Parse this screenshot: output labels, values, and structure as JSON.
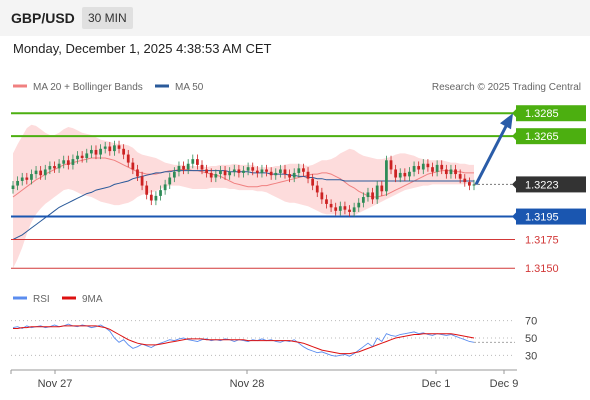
{
  "header": {
    "pair": "GBP/USD",
    "timeframe": "30 MIN",
    "datetime": "Monday, December 1, 2025 4:38:53 AM CET"
  },
  "colors": {
    "up": "#2e8b57",
    "down": "#cc2222",
    "resistance": "#4caf10",
    "support": "#1a56b0",
    "minor_support": "#d23838",
    "ma20": "#f08080",
    "ma50": "#2a5a9a",
    "bands": "#fddcdc",
    "rsi": "#5b8def",
    "rsi_ma": "#dd1111",
    "arrow": "#2a5ca8"
  },
  "chart_data": [
    {
      "type": "candlestick",
      "legend": [
        {
          "label": "MA 20 + Bollinger Bands",
          "color": "#f08080"
        },
        {
          "label": "MA 50",
          "color": "#2a5a9a"
        }
      ],
      "source": "Research © 2025 Trading Central",
      "ylim": [
        1.3138,
        1.33
      ],
      "current_price": 1.3223,
      "levels": [
        {
          "value": 1.3285,
          "label": "1.3285",
          "kind": "resistance"
        },
        {
          "value": 1.3265,
          "label": "1.3265",
          "kind": "resistance"
        },
        {
          "value": 1.3195,
          "label": "1.3195",
          "kind": "support"
        },
        {
          "value": 1.3175,
          "label": "1.3175",
          "kind": "minor_support"
        },
        {
          "value": 1.315,
          "label": "1.3150",
          "kind": "minor_support"
        }
      ],
      "forecast": {
        "from": 1.3223,
        "to": 1.3285
      },
      "x_ticks": [
        "Nov 27",
        "Nov 28",
        "Dec 1",
        "Dec 9"
      ],
      "close": [
        1.3222,
        1.3226,
        1.3229,
        1.3227,
        1.3232,
        1.3235,
        1.3231,
        1.3236,
        1.3239,
        1.3237,
        1.3241,
        1.3244,
        1.324,
        1.3245,
        1.3248,
        1.3246,
        1.325,
        1.3253,
        1.3249,
        1.3254,
        1.3256,
        1.3252,
        1.3257,
        1.3254,
        1.3249,
        1.3242,
        1.3236,
        1.323,
        1.3222,
        1.3214,
        1.3209,
        1.3213,
        1.3218,
        1.3223,
        1.3229,
        1.3234,
        1.3239,
        1.3236,
        1.3241,
        1.3245,
        1.324,
        1.3236,
        1.3233,
        1.3229,
        1.3232,
        1.3235,
        1.3231,
        1.3234,
        1.3236,
        1.3233,
        1.3235,
        1.3238,
        1.3235,
        1.3233,
        1.3236,
        1.3234,
        1.3231,
        1.3233,
        1.3236,
        1.3232,
        1.3229,
        1.3233,
        1.3237,
        1.3234,
        1.3228,
        1.3222,
        1.3216,
        1.321,
        1.3206,
        1.3203,
        1.32,
        1.3204,
        1.3201,
        1.3199,
        1.3203,
        1.3207,
        1.3212,
        1.3216,
        1.321,
        1.3222,
        1.3217,
        1.3244,
        1.3236,
        1.3229,
        1.3233,
        1.323,
        1.3234,
        1.3239,
        1.3236,
        1.3241,
        1.3238,
        1.3234,
        1.324,
        1.3236,
        1.3232,
        1.3236,
        1.3232,
        1.3228,
        1.3225,
        1.3222,
        1.3223
      ],
      "ma20": [
        1.3212,
        1.3215,
        1.3218,
        1.3221,
        1.3224,
        1.3227,
        1.3229,
        1.3232,
        1.3234,
        1.3236,
        1.3238,
        1.324,
        1.3241,
        1.3242,
        1.3243,
        1.3244,
        1.3245,
        1.3246,
        1.3246,
        1.3246,
        1.3246,
        1.3245,
        1.3244,
        1.3242,
        1.324,
        1.3238,
        1.3236,
        1.3234,
        1.3233,
        1.3232,
        1.3232,
        1.3232,
        1.3233,
        1.3234,
        1.3235,
        1.3235,
        1.3236,
        1.3236,
        1.3236,
        1.3235,
        1.3235,
        1.3234,
        1.3233,
        1.3232,
        1.3231,
        1.323,
        1.3228,
        1.3226,
        1.3224,
        1.3223,
        1.3222,
        1.3221,
        1.3221,
        1.3221,
        1.3222,
        1.3222,
        1.3223,
        1.3224,
        1.3225,
        1.3226,
        1.3227,
        1.3228,
        1.3229,
        1.323,
        1.3231,
        1.3232,
        1.3232,
        1.3233,
        1.3233,
        1.3232,
        1.323,
        1.3228,
        1.3225,
        1.3222,
        1.322,
        1.3217,
        1.3215,
        1.3213,
        1.3212,
        1.3212,
        1.3213,
        1.3214,
        1.3216,
        1.3218,
        1.322,
        1.3222,
        1.3224,
        1.3226,
        1.3228,
        1.323,
        1.3232,
        1.3233,
        1.3234,
        1.3235,
        1.3235,
        1.3235,
        1.3234,
        1.3234,
        1.3233,
        1.3233,
        1.3233
      ],
      "band_upper": [
        1.325,
        1.3258,
        1.3265,
        1.3272,
        1.3275,
        1.3274,
        1.3271,
        1.3268,
        1.3266,
        1.3266,
        1.3268,
        1.3271,
        1.3273,
        1.3272,
        1.327,
        1.3268,
        1.3267,
        1.3266,
        1.3264,
        1.3262,
        1.3261,
        1.326,
        1.3259,
        1.3258,
        1.3258,
        1.3257,
        1.3255,
        1.3251,
        1.3249,
        1.3248,
        1.3247,
        1.3246,
        1.3244,
        1.3242,
        1.3241,
        1.324,
        1.324,
        1.324,
        1.3239,
        1.3239,
        1.3239,
        1.3239,
        1.3238,
        1.3239,
        1.3239,
        1.324,
        1.324,
        1.324,
        1.3241,
        1.324,
        1.324,
        1.324,
        1.324,
        1.3238,
        1.3238,
        1.3238,
        1.3238,
        1.3239,
        1.3239,
        1.324,
        1.3241,
        1.3241,
        1.3241,
        1.324,
        1.3239,
        1.324,
        1.3242,
        1.3244,
        1.3244,
        1.3245,
        1.3247,
        1.325,
        1.3252,
        1.3254,
        1.3253,
        1.325,
        1.3248,
        1.3247,
        1.3246,
        1.3245,
        1.3245,
        1.3246,
        1.3247,
        1.3249,
        1.325,
        1.325,
        1.3249,
        1.3248,
        1.3246,
        1.3245,
        1.3244,
        1.3244,
        1.3244,
        1.3244,
        1.3243,
        1.3242,
        1.3242,
        1.3241,
        1.3241,
        1.324,
        1.324
      ],
      "band_lower": [
        1.315,
        1.3158,
        1.3168,
        1.318,
        1.319,
        1.3197,
        1.3202,
        1.3206,
        1.3209,
        1.3212,
        1.3215,
        1.3218,
        1.3219,
        1.3218,
        1.3216,
        1.3214,
        1.3213,
        1.3212,
        1.321,
        1.3208,
        1.3207,
        1.3206,
        1.3205,
        1.3205,
        1.3206,
        1.3207,
        1.3209,
        1.3212,
        1.3214,
        1.3215,
        1.3216,
        1.3217,
        1.3219,
        1.3221,
        1.3222,
        1.3222,
        1.3222,
        1.3221,
        1.322,
        1.3219,
        1.3219,
        1.3219,
        1.3219,
        1.322,
        1.322,
        1.322,
        1.322,
        1.3219,
        1.3219,
        1.3218,
        1.3218,
        1.3218,
        1.3218,
        1.3217,
        1.3217,
        1.3216,
        1.3214,
        1.3212,
        1.321,
        1.3208,
        1.3207,
        1.3207,
        1.3206,
        1.3205,
        1.3204,
        1.3202,
        1.32,
        1.3198,
        1.3197,
        1.3197,
        1.3197,
        1.3196,
        1.3196,
        1.3195,
        1.3196,
        1.3198,
        1.32,
        1.3202,
        1.3204,
        1.3206,
        1.3208,
        1.321,
        1.3212,
        1.3214,
        1.3216,
        1.3218,
        1.3219,
        1.322,
        1.3221,
        1.3222,
        1.3222,
        1.3223,
        1.3223,
        1.3223,
        1.3223,
        1.3223,
        1.3223,
        1.3223,
        1.3223,
        1.3224,
        1.3224
      ],
      "ma50": [
        1.3175,
        1.3177,
        1.3179,
        1.3182,
        1.3185,
        1.3188,
        1.3191,
        1.3194,
        1.3197,
        1.32,
        1.3203,
        1.3205,
        1.3207,
        1.3209,
        1.3211,
        1.3213,
        1.3215,
        1.3216,
        1.3218,
        1.3219,
        1.322,
        1.3221,
        1.3223,
        1.3224,
        1.3225,
        1.3226,
        1.3228,
        1.3229,
        1.323,
        1.3231,
        1.3232,
        1.3233,
        1.3233,
        1.3234,
        1.3234,
        1.3235,
        1.3235,
        1.3235,
        1.3235,
        1.3235,
        1.3235,
        1.3235,
        1.3235,
        1.3235,
        1.3235,
        1.3235,
        1.3235,
        1.3234,
        1.3234,
        1.3234,
        1.3234,
        1.3234,
        1.3233,
        1.3233,
        1.3233,
        1.3233,
        1.3232,
        1.3232,
        1.3232,
        1.3232,
        1.3231,
        1.3231,
        1.323,
        1.323,
        1.3229,
        1.3229,
        1.3228,
        1.3228,
        1.3227,
        1.3227,
        1.3227,
        1.3227,
        1.3226,
        1.3226,
        1.3226,
        1.3226,
        1.3226,
        1.3226,
        1.3226,
        1.3226,
        1.3226,
        1.3226,
        1.3226,
        1.3226,
        1.3226,
        1.3226,
        1.3226,
        1.3226,
        1.3226,
        1.3226,
        1.3226,
        1.3226,
        1.3226,
        1.3226,
        1.3226,
        1.3226,
        1.3226,
        1.3226,
        1.3226,
        1.3226,
        1.3226
      ]
    },
    {
      "type": "line",
      "legend": [
        {
          "label": "RSI",
          "color": "#5b8def"
        },
        {
          "label": "9MA",
          "color": "#dd1111"
        }
      ],
      "ylim": [
        20,
        80
      ],
      "y_ticks": [
        70,
        50,
        30
      ],
      "rsi": [
        62,
        63,
        61,
        64,
        62,
        63,
        64,
        62,
        63,
        65,
        63,
        64,
        66,
        64,
        63,
        65,
        64,
        62,
        63,
        65,
        62,
        58,
        50,
        45,
        48,
        42,
        38,
        40,
        43,
        41,
        39,
        42,
        44,
        46,
        48,
        47,
        49,
        50,
        48,
        47,
        46,
        48,
        49,
        47,
        48,
        47,
        49,
        48,
        46,
        48,
        47,
        46,
        48,
        47,
        49,
        47,
        48,
        46,
        45,
        47,
        46,
        48,
        44,
        40,
        37,
        35,
        33,
        34,
        32,
        30,
        29,
        30,
        31,
        29,
        32,
        36,
        40,
        44,
        40,
        50,
        46,
        55,
        53,
        52,
        54,
        55,
        56,
        57,
        55,
        56,
        54,
        53,
        55,
        54,
        53,
        54,
        52,
        50,
        48,
        46,
        45
      ],
      "rsi_ma": [
        61,
        61,
        62,
        62,
        63,
        63,
        63,
        63,
        63,
        63,
        63,
        64,
        64,
        64,
        64,
        64,
        64,
        64,
        64,
        63,
        62,
        60,
        57,
        54,
        51,
        48,
        46,
        44,
        43,
        42,
        42,
        42,
        43,
        44,
        45,
        46,
        47,
        48,
        49,
        49,
        49,
        49,
        48,
        48,
        48,
        48,
        48,
        48,
        48,
        48,
        48,
        47,
        47,
        47,
        47,
        47,
        47,
        47,
        47,
        47,
        47,
        46,
        45,
        44,
        42,
        40,
        38,
        36,
        35,
        34,
        33,
        32,
        32,
        32,
        33,
        34,
        36,
        38,
        40,
        42,
        44,
        46,
        48,
        50,
        51,
        52,
        53,
        54,
        54,
        55,
        55,
        55,
        55,
        55,
        55,
        55,
        54,
        53,
        52,
        51,
        50
      ]
    }
  ]
}
